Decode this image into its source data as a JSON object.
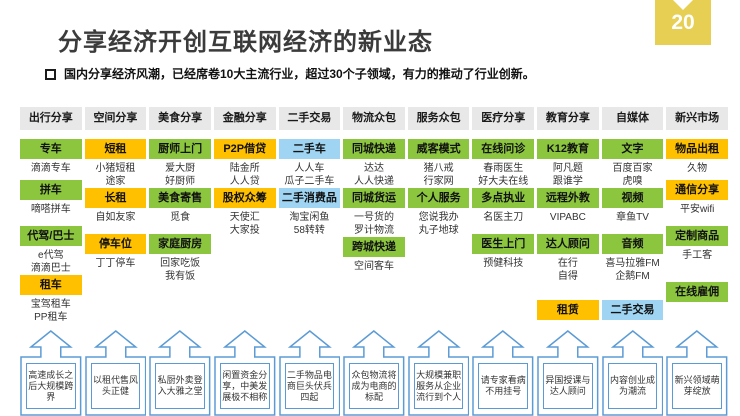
{
  "page": {
    "number": "20"
  },
  "title": "分享经济开创互联网经济的新业态",
  "intro": "国内分享经济风潮，已经席卷10大主流行业，超过30个子领域，有力的推动了行业创新。",
  "colors": {
    "green": "#8CC63F",
    "orange": "#FFC000",
    "blue": "#9FD5F2",
    "gray": "#E8E8E8",
    "stroke": "#5B9BD5",
    "badge": "#E6CF53"
  },
  "columns": [
    {
      "header": "出行分享",
      "items": [
        {
          "label": "专车",
          "color": "green",
          "companies": [
            "滴滴专车"
          ]
        },
        {
          "label": "拼车",
          "color": "green",
          "companies": [
            "嘀嗒拼车"
          ]
        },
        {
          "label": "代驾/巴士",
          "color": "green",
          "companies": [
            "e代驾",
            "滴滴巴士"
          ]
        },
        {
          "label": "租车",
          "color": "orange",
          "companies": [
            "宝驾租车",
            "PP租车"
          ]
        }
      ],
      "takeaway": "高速成长之后大规模跨界"
    },
    {
      "header": "空间分享",
      "items": [
        {
          "label": "短租",
          "color": "orange",
          "companies": [
            "小猪短租",
            "途家"
          ]
        },
        {
          "label": "长租",
          "color": "orange",
          "companies": [
            "自如友家"
          ]
        },
        {
          "label": "停车位",
          "color": "orange",
          "companies": [
            "丁丁停车"
          ]
        }
      ],
      "takeaway": "以租代售风头正健"
    },
    {
      "header": "美食分享",
      "items": [
        {
          "label": "厨师上门",
          "color": "green",
          "companies": [
            "爱大厨",
            "好厨师"
          ]
        },
        {
          "label": "美食寄售",
          "color": "green",
          "companies": [
            "觅食"
          ]
        },
        {
          "label": "家庭厨房",
          "color": "green",
          "companies": [
            "回家吃饭",
            "我有饭"
          ]
        }
      ],
      "takeaway": "私厨外卖登入大雅之堂"
    },
    {
      "header": "金融分享",
      "items": [
        {
          "label": "P2P借贷",
          "color": "orange",
          "companies": [
            "陆金所",
            "人人贷"
          ]
        },
        {
          "label": "股权众筹",
          "color": "orange",
          "companies": [
            "天使汇",
            "大家投"
          ]
        }
      ],
      "takeaway": "闲置资金分享，中美发展极不相称"
    },
    {
      "header": "二手交易",
      "items": [
        {
          "label": "二手车",
          "color": "blue",
          "companies": [
            "人人车",
            "瓜子二手车"
          ]
        },
        {
          "label": "二手消费品",
          "color": "blue",
          "companies": [
            "淘宝闲鱼",
            "58转转"
          ]
        }
      ],
      "takeaway": "二手物品电商巨头伏兵四起"
    },
    {
      "header": "物流众包",
      "items": [
        {
          "label": "同城快递",
          "color": "green",
          "companies": [
            "达达",
            "人人快递"
          ]
        },
        {
          "label": "同城货运",
          "color": "green",
          "companies": [
            "一号货的",
            "罗计物流"
          ]
        },
        {
          "label": "跨城快递",
          "color": "green",
          "companies": [
            "空间客车"
          ]
        }
      ],
      "takeaway": "众包物流将成为电商的标配"
    },
    {
      "header": "服务众包",
      "items": [
        {
          "label": "威客模式",
          "color": "green",
          "companies": [
            "猪八戒",
            "行家网"
          ]
        },
        {
          "label": "个人服务",
          "color": "green",
          "companies": [
            "您说我办",
            "丸子地球"
          ]
        }
      ],
      "takeaway": "大规模兼职服务从企业流行到个人"
    },
    {
      "header": "医疗分享",
      "items": [
        {
          "label": "在线问诊",
          "color": "green",
          "companies": [
            "春雨医生",
            "好大夫在线"
          ]
        },
        {
          "label": "多点执业",
          "color": "green",
          "companies": [
            "名医主刀"
          ]
        },
        {
          "label": "医生上门",
          "color": "green",
          "companies": [
            "预健科技"
          ]
        }
      ],
      "takeaway": "请专家看病不用挂号"
    },
    {
      "header": "教育分享",
      "items": [
        {
          "label": "K12教育",
          "color": "green",
          "companies": [
            "阿凡题",
            "跟谁学"
          ]
        },
        {
          "label": "远程外教",
          "color": "green",
          "companies": [
            "VIPABC"
          ]
        },
        {
          "label": "达人顾问",
          "color": "green",
          "companies": [
            "在行",
            "自得"
          ]
        },
        {
          "label": "租赁",
          "color": "orange",
          "companies": [],
          "gap_before": true
        }
      ],
      "takeaway": "异国授课与达人顾问"
    },
    {
      "header": "自媒体",
      "items": [
        {
          "label": "文字",
          "color": "green",
          "companies": [
            "百度百家",
            "虎嗅"
          ]
        },
        {
          "label": "视频",
          "color": "green",
          "companies": [
            "章鱼TV"
          ]
        },
        {
          "label": "音频",
          "color": "green",
          "companies": [
            "喜马拉雅FM",
            "企鹅FM"
          ]
        },
        {
          "label": "二手交易",
          "color": "blue",
          "companies": [],
          "gap_before": true
        }
      ],
      "takeaway": "内容创业成为潮流"
    },
    {
      "header": "新兴市场",
      "items": [
        {
          "label": "物品出租",
          "color": "orange",
          "companies": [
            "久物"
          ]
        },
        {
          "label": "通信分享",
          "color": "orange",
          "companies": [
            "平安wifi"
          ]
        },
        {
          "label": "定制商品",
          "color": "green",
          "companies": [
            "手工客"
          ]
        },
        {
          "label": "在线雇佣",
          "color": "green",
          "companies": [],
          "gap_before": true
        }
      ],
      "takeaway": "新兴领域萌芽绽放"
    }
  ]
}
